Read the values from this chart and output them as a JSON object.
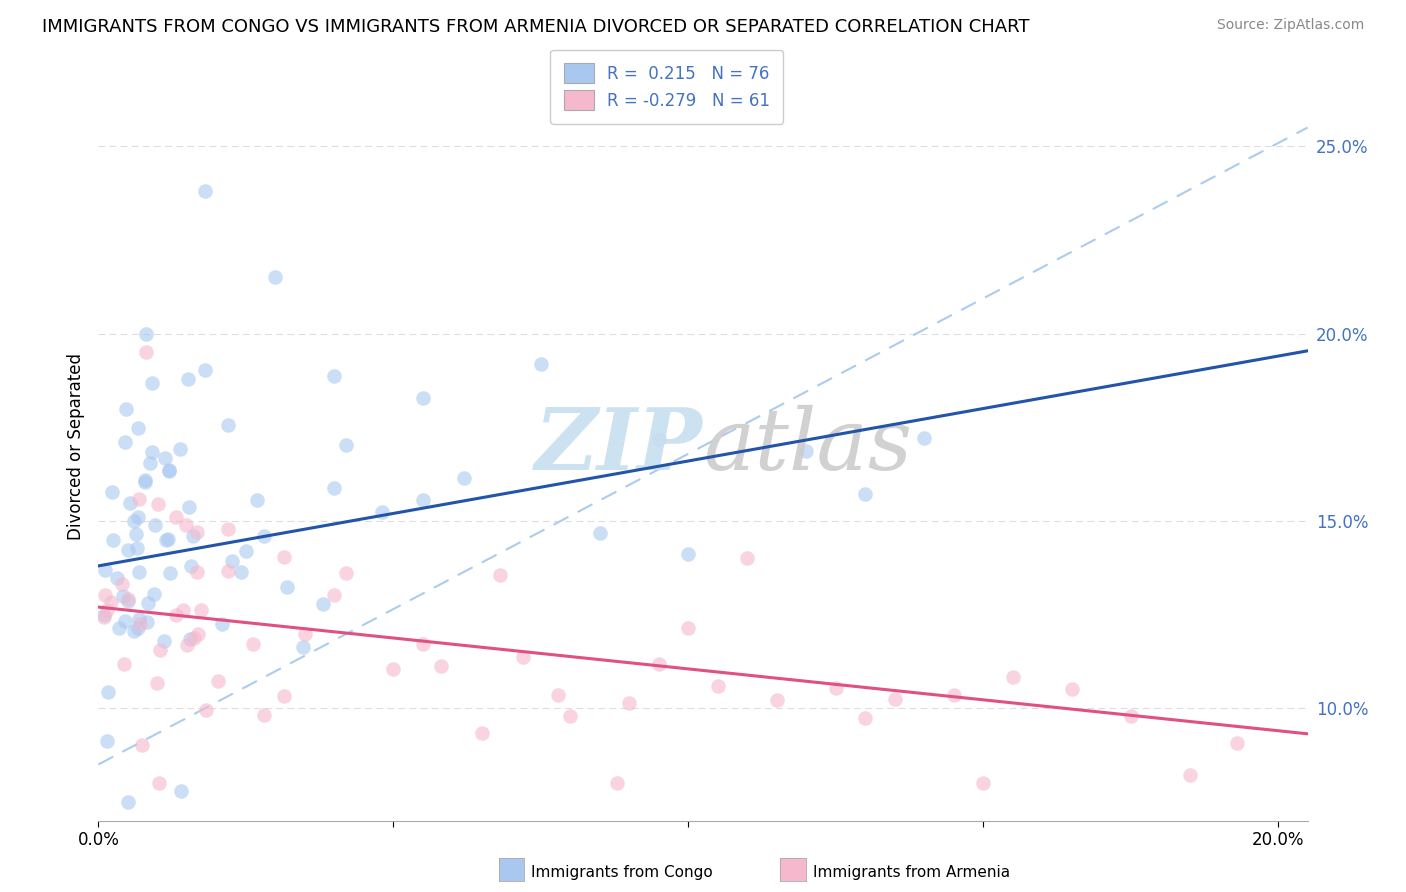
{
  "title": "IMMIGRANTS FROM CONGO VS IMMIGRANTS FROM ARMENIA DIVORCED OR SEPARATED CORRELATION CHART",
  "source": "Source: ZipAtlas.com",
  "ylabel": "Divorced or Separated",
  "xlim": [
    0.0,
    0.205
  ],
  "ylim": [
    0.07,
    0.27
  ],
  "legend_R_congo": " 0.215",
  "legend_N_congo": "76",
  "legend_R_armenia": "-0.279",
  "legend_N_armenia": "61",
  "congo_color": "#a8c8f0",
  "armenia_color": "#f5b8cc",
  "congo_line_color": "#2255aa",
  "armenia_line_color": "#e05080",
  "dashed_line_color": "#aaccee",
  "watermark_color": "#c8dff0",
  "background_color": "#ffffff",
  "grid_color": "#dddddd",
  "title_fontsize": 13,
  "congo_line_intercept": 0.138,
  "congo_line_slope": 0.28,
  "armenia_line_intercept": 0.127,
  "armenia_line_slope": -0.165
}
